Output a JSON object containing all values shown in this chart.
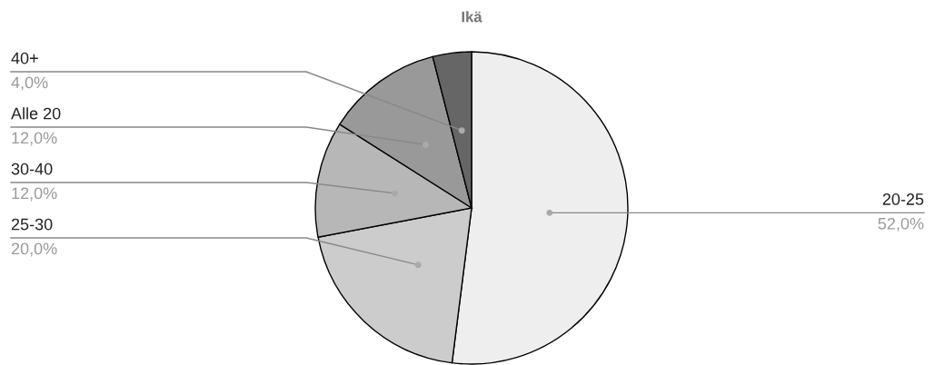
{
  "chart_data": {
    "type": "pie",
    "title": "Ikä",
    "categories": [
      "20-25",
      "25-30",
      "30-40",
      "Alle 20",
      "40+"
    ],
    "values": [
      52,
      20,
      12,
      12,
      4
    ],
    "value_labels": [
      "52,0%",
      "20,0%",
      "12,0%",
      "12,0%",
      "4,0%"
    ],
    "colors": [
      "#eeeeee",
      "#cccccc",
      "#b7b7b7",
      "#999999",
      "#666666"
    ]
  }
}
